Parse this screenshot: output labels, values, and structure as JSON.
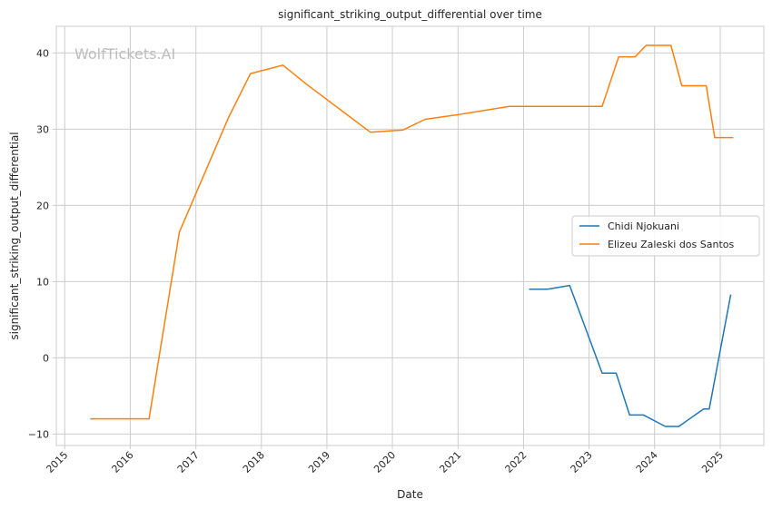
{
  "chart_data": {
    "type": "line",
    "title": "significant_striking_output_differential over time",
    "xlabel": "Date",
    "ylabel": "significant_striking_output_differential",
    "watermark": "WolfTickets.AI",
    "xlim": [
      "2014-11-15",
      "2025-09-01"
    ],
    "ylim": [
      -11.5,
      43.5
    ],
    "x_ticks": [
      "2015",
      "2016",
      "2017",
      "2018",
      "2019",
      "2020",
      "2021",
      "2022",
      "2023",
      "2024",
      "2025"
    ],
    "y_ticks": [
      -10,
      0,
      10,
      20,
      30,
      40
    ],
    "y_tick_labels": [
      "−10",
      "0",
      "10",
      "20",
      "30",
      "40"
    ],
    "grid": true,
    "legend_position": "center-right",
    "series": [
      {
        "name": "Chidi Njokuani",
        "color": "#1f77b4",
        "points": [
          [
            "2022-02-01",
            9.0
          ],
          [
            "2022-05-15",
            9.0
          ],
          [
            "2022-09-15",
            9.5
          ],
          [
            "2023-03-15",
            -2.0
          ],
          [
            "2023-06-01",
            -2.0
          ],
          [
            "2023-08-15",
            -7.5
          ],
          [
            "2023-11-01",
            -7.5
          ],
          [
            "2024-03-01",
            -9.0
          ],
          [
            "2024-05-15",
            -9.0
          ],
          [
            "2024-10-01",
            -6.7
          ],
          [
            "2024-11-01",
            -6.7
          ],
          [
            "2025-03-01",
            8.3
          ]
        ]
      },
      {
        "name": "Elizeu Zaleski dos Santos",
        "color": "#ff7f0e",
        "points": [
          [
            "2015-05-23",
            -8.0
          ],
          [
            "2016-04-15",
            -8.0
          ],
          [
            "2016-10-01",
            16.5
          ],
          [
            "2017-07-01",
            31.5
          ],
          [
            "2017-11-01",
            37.3
          ],
          [
            "2018-05-01",
            38.4
          ],
          [
            "2018-09-15",
            35.8
          ],
          [
            "2019-09-01",
            29.6
          ],
          [
            "2020-03-01",
            29.9
          ],
          [
            "2020-07-01",
            31.3
          ],
          [
            "2021-01-01",
            31.9
          ],
          [
            "2021-10-15",
            33.0
          ],
          [
            "2023-03-15",
            33.0
          ],
          [
            "2023-06-15",
            39.5
          ],
          [
            "2023-09-15",
            39.5
          ],
          [
            "2023-11-15",
            41.0
          ],
          [
            "2024-04-01",
            41.0
          ],
          [
            "2024-06-01",
            35.7
          ],
          [
            "2024-10-15",
            35.7
          ],
          [
            "2024-12-01",
            28.9
          ],
          [
            "2025-03-15",
            28.9
          ]
        ]
      }
    ]
  }
}
